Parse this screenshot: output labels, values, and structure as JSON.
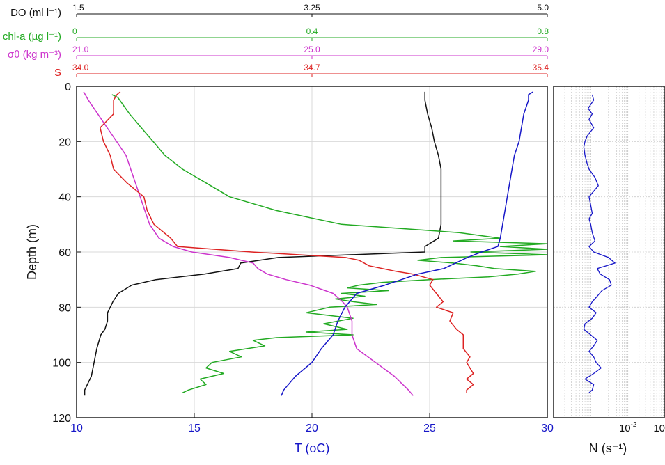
{
  "chart_data": [
    {
      "type": "line",
      "ylabel": "Depth (m)",
      "ylim": [
        0,
        120
      ],
      "yticks": [
        0,
        20,
        40,
        60,
        80,
        100,
        120
      ],
      "y_reversed": true,
      "grid": true,
      "legend": "none",
      "primary_axis": {
        "label": "T (oC)",
        "range": [
          10,
          30
        ],
        "ticks": [
          10,
          15,
          20,
          25,
          30
        ],
        "color": "#1616c8"
      },
      "top_axes": [
        {
          "id": "do",
          "label": "DO (ml l⁻¹)",
          "range": [
            1.5,
            5.0
          ],
          "tick_labels": [
            "1.5",
            "3.25",
            "5.0"
          ],
          "color": "#111111"
        },
        {
          "id": "chl",
          "label": "chl-a (µg l⁻¹)",
          "range": [
            0,
            0.8
          ],
          "tick_labels": [
            "0",
            "0.4",
            "0.8"
          ],
          "color": "#22aa22"
        },
        {
          "id": "sigma",
          "label": "σθ (kg m⁻³)",
          "range": [
            21.0,
            29.0
          ],
          "tick_labels": [
            "21.0",
            "25.0",
            "29.0"
          ],
          "color": "#cc33cc"
        },
        {
          "id": "sal",
          "label": "S",
          "range": [
            34.0,
            35.4
          ],
          "tick_labels": [
            "34.0",
            "34.7",
            "35.4"
          ],
          "color": "#dd2222"
        }
      ],
      "series": [
        {
          "axis": "do",
          "color": "#111111",
          "depth": [
            2,
            5,
            10,
            15,
            20,
            25,
            30,
            35,
            40,
            45,
            50,
            55,
            58,
            60,
            62,
            64,
            66,
            68,
            70,
            72,
            75,
            78,
            80,
            82,
            85,
            88,
            90,
            95,
            100,
            105,
            110,
            112
          ],
          "values": [
            4.09,
            4.09,
            4.11,
            4.14,
            4.16,
            4.19,
            4.21,
            4.21,
            4.21,
            4.21,
            4.21,
            4.19,
            4.09,
            4.09,
            3.0,
            2.72,
            2.7,
            2.45,
            2.09,
            1.91,
            1.81,
            1.77,
            1.75,
            1.73,
            1.73,
            1.71,
            1.68,
            1.65,
            1.63,
            1.61,
            1.56,
            1.56
          ]
        },
        {
          "axis": "chl",
          "color": "#22aa22",
          "depth": [
            3,
            4,
            10,
            15,
            20,
            25,
            30,
            35,
            40,
            45,
            50,
            53,
            55,
            56,
            57,
            58,
            59,
            60,
            61,
            62,
            63,
            64,
            65,
            66,
            67,
            68,
            69,
            70,
            71,
            72,
            73,
            74,
            75,
            76,
            77,
            78,
            79,
            80,
            82,
            84,
            86,
            88,
            89,
            90,
            91,
            92,
            94,
            96,
            98,
            100,
            102,
            104,
            106,
            108,
            110,
            111
          ],
          "values": [
            0.06,
            0.07,
            0.09,
            0.11,
            0.13,
            0.15,
            0.18,
            0.22,
            0.26,
            0.34,
            0.45,
            0.65,
            0.72,
            0.64,
            0.8,
            0.72,
            0.8,
            0.67,
            0.8,
            0.62,
            0.58,
            0.64,
            0.68,
            0.71,
            0.78,
            0.75,
            0.7,
            0.6,
            0.52,
            0.48,
            0.46,
            0.53,
            0.45,
            0.49,
            0.44,
            0.47,
            0.51,
            0.43,
            0.39,
            0.47,
            0.42,
            0.46,
            0.39,
            0.47,
            0.34,
            0.3,
            0.32,
            0.26,
            0.28,
            0.23,
            0.22,
            0.25,
            0.21,
            0.22,
            0.19,
            0.18
          ]
        },
        {
          "axis": "sigma",
          "color": "#cc33cc",
          "depth": [
            2,
            5,
            10,
            15,
            20,
            25,
            30,
            35,
            40,
            45,
            50,
            55,
            58,
            60,
            62,
            64,
            66,
            68,
            70,
            72,
            75,
            78,
            80,
            85,
            90,
            95,
            100,
            105,
            110,
            112
          ],
          "values": [
            21.12,
            21.2,
            21.36,
            21.52,
            21.68,
            21.84,
            21.92,
            22.0,
            22.08,
            22.16,
            22.24,
            22.4,
            22.64,
            22.96,
            23.6,
            24.0,
            24.08,
            24.24,
            24.56,
            24.96,
            25.36,
            25.52,
            25.6,
            25.68,
            25.68,
            25.76,
            26.08,
            26.4,
            26.64,
            26.72
          ]
        },
        {
          "axis": "sal",
          "color": "#dd2222",
          "depth": [
            2,
            3,
            5,
            10,
            15,
            20,
            25,
            30,
            35,
            40,
            45,
            50,
            55,
            58,
            60,
            62,
            63,
            65,
            67,
            68,
            70,
            72,
            75,
            78,
            80,
            82,
            85,
            88,
            90,
            92,
            95,
            98,
            100,
            102,
            104,
            106,
            108,
            110,
            111
          ],
          "values": [
            34.13,
            34.12,
            34.11,
            34.11,
            34.07,
            34.08,
            34.1,
            34.11,
            34.15,
            34.2,
            34.21,
            34.23,
            34.28,
            34.3,
            34.52,
            34.8,
            34.84,
            34.87,
            34.95,
            35.0,
            35.06,
            35.05,
            35.07,
            35.09,
            35.07,
            35.12,
            35.11,
            35.13,
            35.15,
            35.15,
            35.15,
            35.17,
            35.16,
            35.17,
            35.18,
            35.16,
            35.18,
            35.16,
            35.16
          ]
        },
        {
          "axis": "primary",
          "color": "#1616c8",
          "depth": [
            2,
            3,
            5,
            10,
            15,
            20,
            25,
            30,
            35,
            40,
            45,
            50,
            55,
            58,
            60,
            62,
            64,
            66,
            68,
            70,
            72,
            75,
            78,
            80,
            85,
            90,
            95,
            100,
            105,
            110,
            112
          ],
          "values": [
            29.4,
            29.2,
            29.2,
            29.0,
            28.9,
            28.8,
            28.6,
            28.5,
            28.4,
            28.3,
            28.2,
            28.1,
            28.0,
            27.9,
            27.2,
            26.6,
            26.1,
            25.6,
            24.5,
            23.8,
            23.1,
            21.9,
            21.6,
            21.4,
            21.1,
            20.9,
            20.4,
            20.0,
            19.3,
            18.8,
            18.7
          ]
        }
      ]
    },
    {
      "type": "line",
      "xlabel": "N (s⁻¹)",
      "x_scale": "log",
      "xlim": [
        0.0001,
        0.1
      ],
      "xtick_labels": [
        {
          "base": "10",
          "exp": "-2"
        },
        {
          "base": "10",
          "exp": ""
        }
      ],
      "ylim": [
        0,
        120
      ],
      "y_reversed": true,
      "grid": true,
      "series": [
        {
          "color": "#1616c8",
          "depth": [
            3,
            5,
            8,
            10,
            12,
            15,
            18,
            20,
            22,
            25,
            28,
            30,
            33,
            36,
            38,
            40,
            43,
            46,
            48,
            50,
            53,
            56,
            58,
            60,
            62,
            64,
            66,
            68,
            70,
            72,
            74,
            76,
            78,
            80,
            82,
            84,
            86,
            88,
            90,
            92,
            94,
            96,
            98,
            100,
            102,
            104,
            106,
            108,
            110,
            111
          ],
          "values": [
            0.0011,
            0.0012,
            0.00085,
            0.0011,
            0.0009,
            0.0012,
            0.0008,
            0.0007,
            0.00065,
            0.0007,
            0.0008,
            0.0009,
            0.0013,
            0.0016,
            0.0012,
            0.0009,
            0.001,
            0.0011,
            0.0009,
            0.001,
            0.0011,
            0.0013,
            0.0009,
            0.0012,
            0.003,
            0.0045,
            0.0015,
            0.0018,
            0.0032,
            0.0036,
            0.002,
            0.0015,
            0.0011,
            0.0009,
            0.0014,
            0.0011,
            0.0007,
            0.00065,
            0.001,
            0.0015,
            0.0012,
            0.0009,
            0.0012,
            0.0014,
            0.0019,
            0.0012,
            0.0007,
            0.0012,
            0.0011,
            0.0009
          ]
        }
      ]
    }
  ]
}
